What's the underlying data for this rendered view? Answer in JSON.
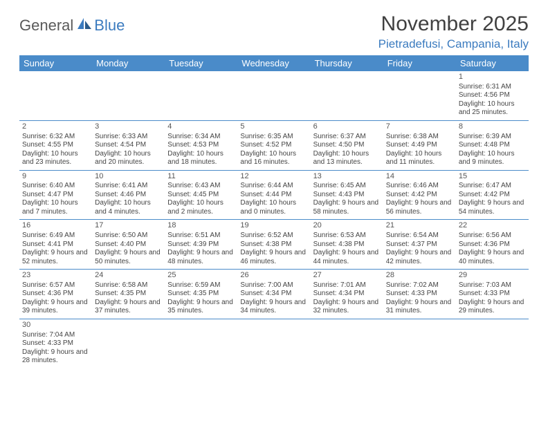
{
  "logo_text1": "General",
  "logo_text2": "Blue",
  "title": "November 2025",
  "location": "Pietradefusi, Campania, Italy",
  "weekdays": [
    "Sunday",
    "Monday",
    "Tuesday",
    "Wednesday",
    "Thursday",
    "Friday",
    "Saturday"
  ],
  "colors": {
    "header_bg": "#4a8bc9",
    "header_fg": "#ffffff",
    "accent": "#3b7bbf",
    "text": "#444444",
    "border": "#4a8bc9",
    "bg": "#ffffff"
  },
  "typography": {
    "title_fontsize": 30,
    "location_fontsize": 17,
    "weekday_fontsize": 13,
    "cell_fontsize": 10,
    "daynum_fontsize": 11
  },
  "grid": {
    "rows": 6,
    "cols": 7,
    "first_day_col": 6,
    "days_in_month": 30
  },
  "days": {
    "1": {
      "sunrise": "6:31 AM",
      "sunset": "4:56 PM",
      "daylight": "10 hours and 25 minutes."
    },
    "2": {
      "sunrise": "6:32 AM",
      "sunset": "4:55 PM",
      "daylight": "10 hours and 23 minutes."
    },
    "3": {
      "sunrise": "6:33 AM",
      "sunset": "4:54 PM",
      "daylight": "10 hours and 20 minutes."
    },
    "4": {
      "sunrise": "6:34 AM",
      "sunset": "4:53 PM",
      "daylight": "10 hours and 18 minutes."
    },
    "5": {
      "sunrise": "6:35 AM",
      "sunset": "4:52 PM",
      "daylight": "10 hours and 16 minutes."
    },
    "6": {
      "sunrise": "6:37 AM",
      "sunset": "4:50 PM",
      "daylight": "10 hours and 13 minutes."
    },
    "7": {
      "sunrise": "6:38 AM",
      "sunset": "4:49 PM",
      "daylight": "10 hours and 11 minutes."
    },
    "8": {
      "sunrise": "6:39 AM",
      "sunset": "4:48 PM",
      "daylight": "10 hours and 9 minutes."
    },
    "9": {
      "sunrise": "6:40 AM",
      "sunset": "4:47 PM",
      "daylight": "10 hours and 7 minutes."
    },
    "10": {
      "sunrise": "6:41 AM",
      "sunset": "4:46 PM",
      "daylight": "10 hours and 4 minutes."
    },
    "11": {
      "sunrise": "6:43 AM",
      "sunset": "4:45 PM",
      "daylight": "10 hours and 2 minutes."
    },
    "12": {
      "sunrise": "6:44 AM",
      "sunset": "4:44 PM",
      "daylight": "10 hours and 0 minutes."
    },
    "13": {
      "sunrise": "6:45 AM",
      "sunset": "4:43 PM",
      "daylight": "9 hours and 58 minutes."
    },
    "14": {
      "sunrise": "6:46 AM",
      "sunset": "4:42 PM",
      "daylight": "9 hours and 56 minutes."
    },
    "15": {
      "sunrise": "6:47 AM",
      "sunset": "4:42 PM",
      "daylight": "9 hours and 54 minutes."
    },
    "16": {
      "sunrise": "6:49 AM",
      "sunset": "4:41 PM",
      "daylight": "9 hours and 52 minutes."
    },
    "17": {
      "sunrise": "6:50 AM",
      "sunset": "4:40 PM",
      "daylight": "9 hours and 50 minutes."
    },
    "18": {
      "sunrise": "6:51 AM",
      "sunset": "4:39 PM",
      "daylight": "9 hours and 48 minutes."
    },
    "19": {
      "sunrise": "6:52 AM",
      "sunset": "4:38 PM",
      "daylight": "9 hours and 46 minutes."
    },
    "20": {
      "sunrise": "6:53 AM",
      "sunset": "4:38 PM",
      "daylight": "9 hours and 44 minutes."
    },
    "21": {
      "sunrise": "6:54 AM",
      "sunset": "4:37 PM",
      "daylight": "9 hours and 42 minutes."
    },
    "22": {
      "sunrise": "6:56 AM",
      "sunset": "4:36 PM",
      "daylight": "9 hours and 40 minutes."
    },
    "23": {
      "sunrise": "6:57 AM",
      "sunset": "4:36 PM",
      "daylight": "9 hours and 39 minutes."
    },
    "24": {
      "sunrise": "6:58 AM",
      "sunset": "4:35 PM",
      "daylight": "9 hours and 37 minutes."
    },
    "25": {
      "sunrise": "6:59 AM",
      "sunset": "4:35 PM",
      "daylight": "9 hours and 35 minutes."
    },
    "26": {
      "sunrise": "7:00 AM",
      "sunset": "4:34 PM",
      "daylight": "9 hours and 34 minutes."
    },
    "27": {
      "sunrise": "7:01 AM",
      "sunset": "4:34 PM",
      "daylight": "9 hours and 32 minutes."
    },
    "28": {
      "sunrise": "7:02 AM",
      "sunset": "4:33 PM",
      "daylight": "9 hours and 31 minutes."
    },
    "29": {
      "sunrise": "7:03 AM",
      "sunset": "4:33 PM",
      "daylight": "9 hours and 29 minutes."
    },
    "30": {
      "sunrise": "7:04 AM",
      "sunset": "4:33 PM",
      "daylight": "9 hours and 28 minutes."
    }
  },
  "labels": {
    "sunrise_prefix": "Sunrise: ",
    "sunset_prefix": "Sunset: ",
    "daylight_prefix": "Daylight: "
  }
}
